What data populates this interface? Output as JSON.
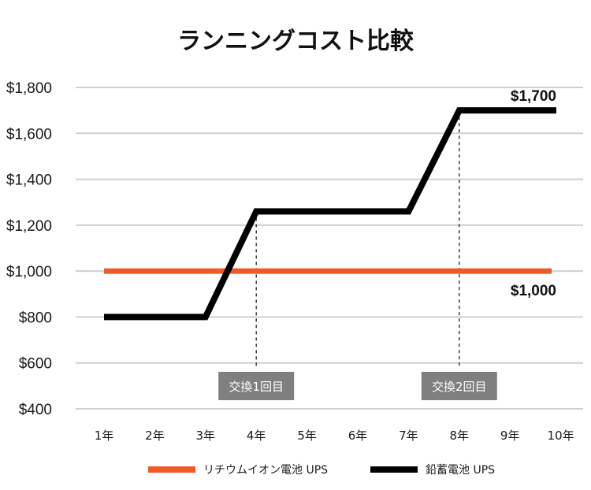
{
  "chart_data": {
    "type": "line",
    "title": "ランニングコスト比較",
    "categories": [
      "1年",
      "2年",
      "3年",
      "4年",
      "5年",
      "6年",
      "7年",
      "8年",
      "9年",
      "10年"
    ],
    "ylim": [
      400,
      1800
    ],
    "yticks": [
      "$400",
      "$600",
      "$800",
      "$1,000",
      "$1,200",
      "$1,400",
      "$1,600",
      "$1,800"
    ],
    "ytick_values": [
      400,
      600,
      800,
      1000,
      1200,
      1400,
      1600,
      1800
    ],
    "grid": true,
    "legend_position": "bottom",
    "series": [
      {
        "name": "リチウムイオン電池 UPS",
        "color": "#f05a28",
        "values": [
          1000,
          1000,
          1000,
          1000,
          1000,
          1000,
          1000,
          1000,
          1000,
          1000
        ],
        "end_label": "$1,000"
      },
      {
        "name": "鉛蓄電池 UPS",
        "color": "#000000",
        "values": [
          800,
          800,
          800,
          1260,
          1260,
          1260,
          1260,
          1700,
          1700,
          1700
        ],
        "end_label": "$1,700"
      }
    ],
    "annotations": [
      {
        "label": "交換1回目",
        "category": "4年",
        "value": 1260
      },
      {
        "label": "交換2回目",
        "category": "8年",
        "value": 1700
      }
    ],
    "annotation_color": "#7f7f7f",
    "grid_color": "#d0d0d0"
  }
}
